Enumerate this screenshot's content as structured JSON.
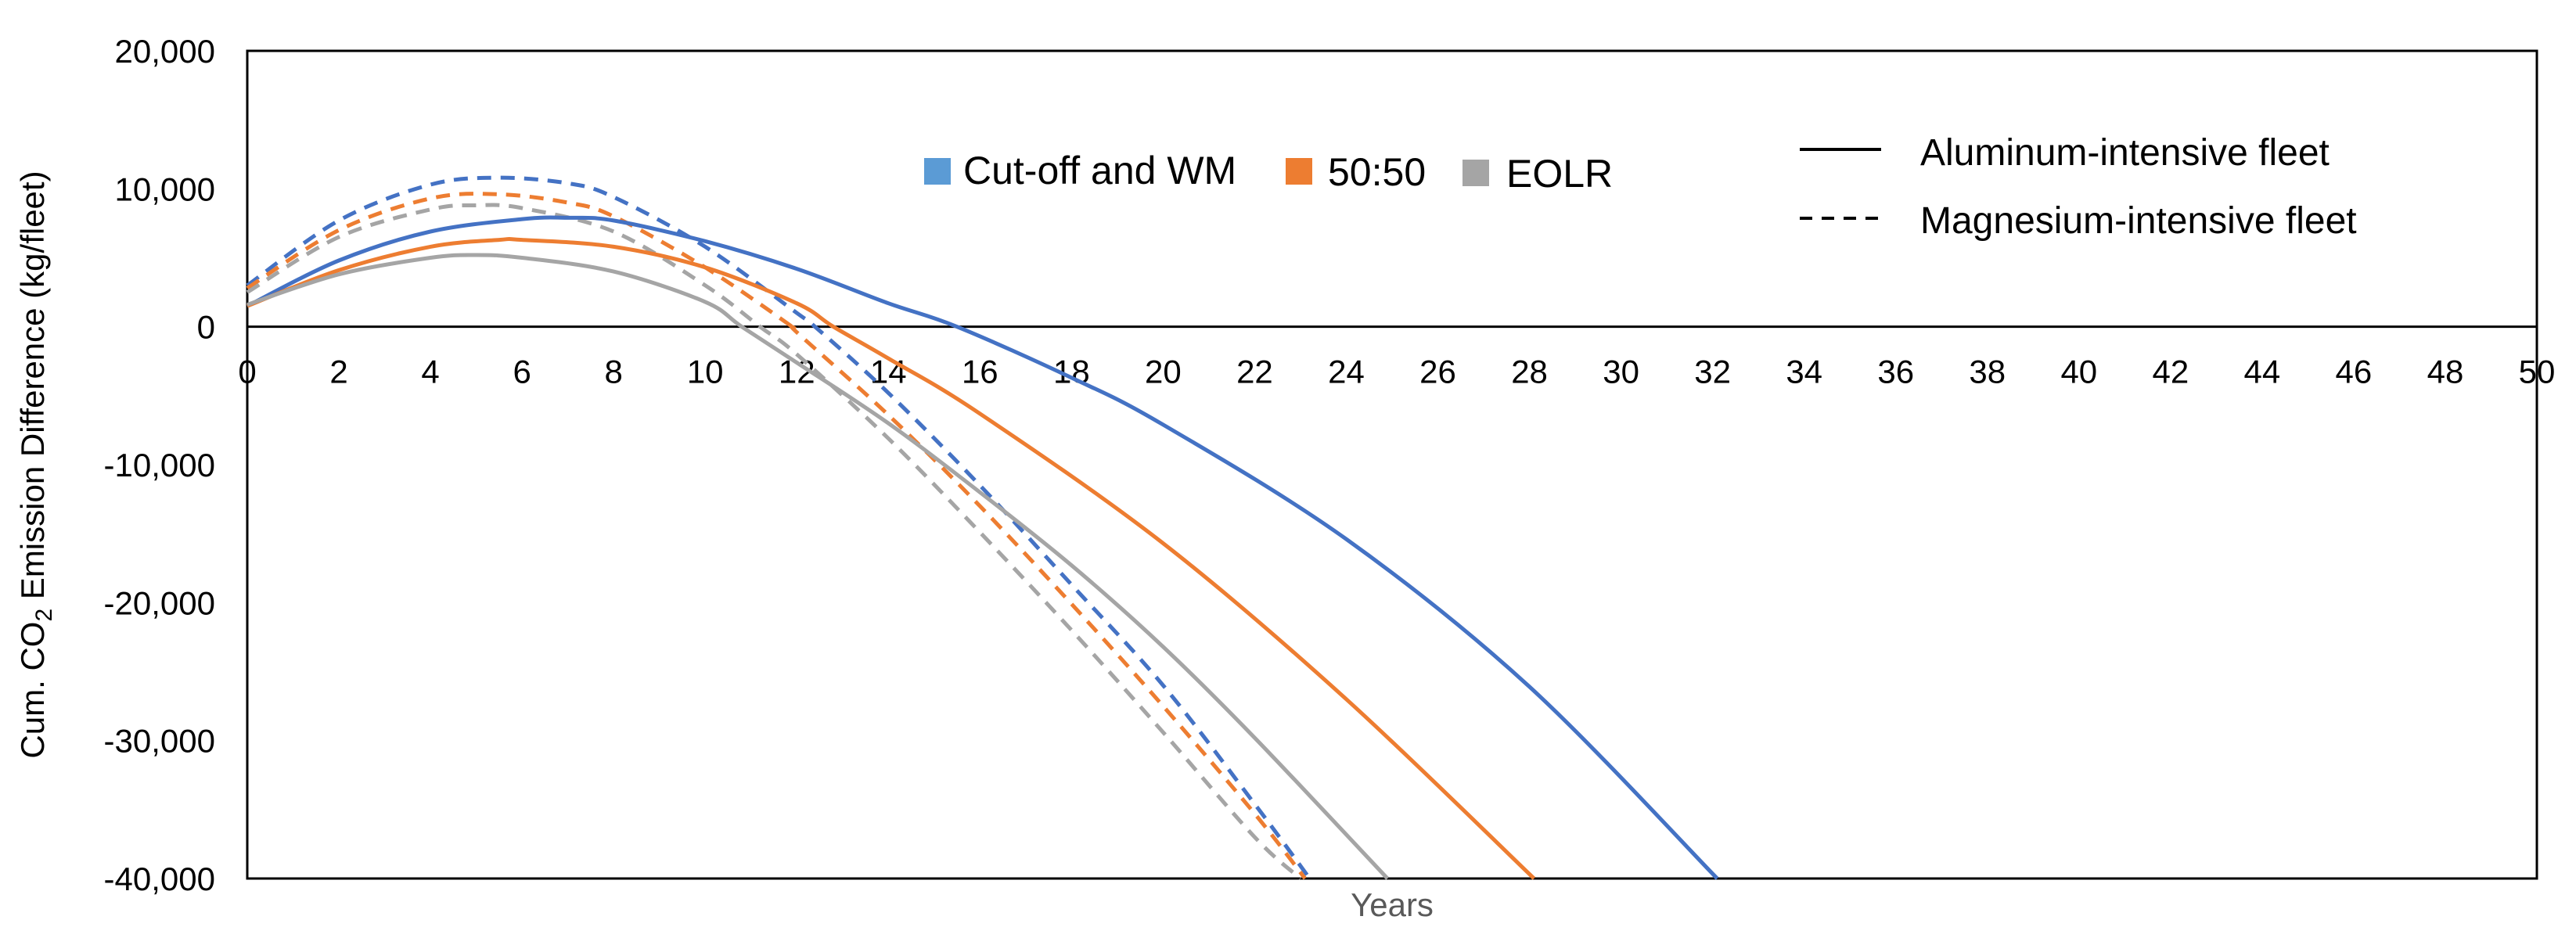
{
  "chart_data": {
    "type": "line",
    "xlabel": "Years",
    "ylabel_prefix": "Cum. CO",
    "ylabel_sub": "2",
    "ylabel_suffix": " Emission Difference  (kg/fleet)",
    "xlim": [
      0,
      50
    ],
    "ylim": [
      -40000,
      20000
    ],
    "x_ticks": [
      "0",
      "2",
      "4",
      "6",
      "8",
      "10",
      "12",
      "14",
      "16",
      "18",
      "20",
      "22",
      "24",
      "26",
      "28",
      "30",
      "32",
      "34",
      "36",
      "38",
      "40",
      "42",
      "44",
      "46",
      "48",
      "50"
    ],
    "y_ticks": [
      "20,000",
      "10,000",
      "0",
      "-10,000",
      "-20,000",
      "-30,000",
      "-40,000"
    ],
    "y_tick_values": [
      20000,
      10000,
      0,
      -10000,
      -20000,
      -30000,
      -40000
    ],
    "x_axis_at_y": 0,
    "grid": false,
    "colors": {
      "cutoff_wm": "#4472C4",
      "fifty_fifty": "#ED7D31",
      "eolr": "#A5A5A5"
    },
    "legend_allocation": [
      {
        "label": "Cut-off and WM",
        "color": "#5B9BD5"
      },
      {
        "label": "50:50",
        "color": "#ED7D31"
      },
      {
        "label": "EOLR",
        "color": "#A5A5A5"
      }
    ],
    "legend_fleet": [
      {
        "label": "Aluminum-intensive fleet",
        "style": "solid"
      },
      {
        "label": "Magnesium-intensive fleet",
        "style": "dashed"
      }
    ],
    "series": [
      {
        "method": "Cut-off and WM",
        "fleet": "Aluminum-intensive fleet",
        "color": "#4472C4",
        "style": "solid",
        "x": [
          0,
          2,
          4,
          6,
          7,
          8,
          10,
          12,
          14,
          15.5,
          18,
          20,
          24,
          28,
          32.1
        ],
        "y": [
          1500,
          4800,
          6900,
          7800,
          7900,
          7700,
          6200,
          4200,
          1700,
          0,
          -3700,
          -7100,
          -15400,
          -26100,
          -40000
        ]
      },
      {
        "method": "50:50",
        "fleet": "Aluminum-intensive fleet",
        "color": "#ED7D31",
        "style": "solid",
        "x": [
          0,
          2,
          4,
          5.5,
          6,
          8,
          10,
          12,
          12.8,
          14,
          16,
          20,
          24,
          28.1
        ],
        "y": [
          1500,
          4100,
          5800,
          6300,
          6300,
          5800,
          4300,
          1700,
          0,
          -2300,
          -6300,
          -15700,
          -27000,
          -40000
        ]
      },
      {
        "method": "EOLR",
        "fleet": "Aluminum-intensive fleet",
        "color": "#A5A5A5",
        "style": "solid",
        "x": [
          0,
          2,
          4,
          5,
          6,
          8,
          10,
          10.8,
          12,
          14,
          16,
          18,
          20,
          22,
          24.9
        ],
        "y": [
          1600,
          3800,
          5000,
          5200,
          5000,
          4000,
          1800,
          0,
          -2600,
          -7000,
          -12000,
          -17300,
          -23200,
          -29800,
          -40000
        ]
      },
      {
        "method": "Cut-off and WM",
        "fleet": "Magnesium-intensive fleet",
        "color": "#4472C4",
        "style": "dashed",
        "x": [
          0,
          2,
          4,
          5.5,
          7,
          8,
          10,
          12,
          12.4,
          14,
          16,
          18,
          20,
          22,
          23.2
        ],
        "y": [
          3000,
          7700,
          10300,
          10800,
          10400,
          9400,
          5800,
          1000,
          0,
          -4800,
          -11500,
          -18700,
          -26000,
          -34600,
          -40000
        ]
      },
      {
        "method": "50:50",
        "fleet": "Magnesium-intensive fleet",
        "color": "#ED7D31",
        "style": "dashed",
        "x": [
          0,
          2,
          4,
          5.5,
          7,
          8,
          10,
          11.9,
          12,
          14,
          16,
          18,
          20,
          22,
          23.1
        ],
        "y": [
          2800,
          7000,
          9300,
          9600,
          9000,
          8000,
          4300,
          0,
          -400,
          -6400,
          -13000,
          -20100,
          -27500,
          -35300,
          -40000
        ]
      },
      {
        "method": "EOLR",
        "fleet": "Magnesium-intensive fleet",
        "color": "#A5A5A5",
        "style": "dashed",
        "x": [
          0,
          2,
          4,
          5,
          6,
          8,
          10,
          11.2,
          12,
          14,
          16,
          18,
          20,
          22,
          23.0
        ],
        "y": [
          2500,
          6500,
          8500,
          8800,
          8600,
          6900,
          3000,
          0,
          -2000,
          -8100,
          -14900,
          -22000,
          -29400,
          -37000,
          -40000
        ]
      }
    ]
  }
}
